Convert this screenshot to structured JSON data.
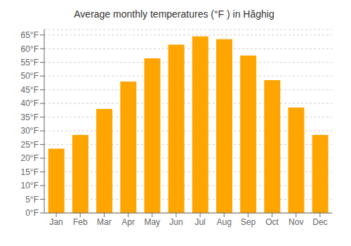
{
  "chart_data": {
    "type": "bar",
    "title": "Average monthly temperatures (°F ) in Hăghig",
    "categories": [
      "Jan",
      "Feb",
      "Mar",
      "Apr",
      "May",
      "Jun",
      "Jul",
      "Aug",
      "Sep",
      "Oct",
      "Nov",
      "Dec"
    ],
    "values": [
      23.5,
      28.5,
      38.0,
      48.0,
      56.5,
      61.5,
      64.5,
      63.5,
      57.5,
      48.5,
      38.5,
      28.5
    ],
    "color": "#FFA500",
    "ylim": [
      0,
      67
    ],
    "yticks": [
      {
        "value": 0,
        "label": "0°F"
      },
      {
        "value": 5,
        "label": "5°F"
      },
      {
        "value": 10,
        "label": "10°F"
      },
      {
        "value": 15,
        "label": "15°F"
      },
      {
        "value": 20,
        "label": "20°F"
      },
      {
        "value": 25,
        "label": "25°F"
      },
      {
        "value": 30,
        "label": "30°F"
      },
      {
        "value": 35,
        "label": "35°F"
      },
      {
        "value": 40,
        "label": "40°F"
      },
      {
        "value": 45,
        "label": "45°F"
      },
      {
        "value": 50,
        "label": "50°F"
      },
      {
        "value": 55,
        "label": "55°F"
      },
      {
        "value": 60,
        "label": "60°F"
      },
      {
        "value": 65,
        "label": "65°F"
      }
    ],
    "grid": true
  }
}
